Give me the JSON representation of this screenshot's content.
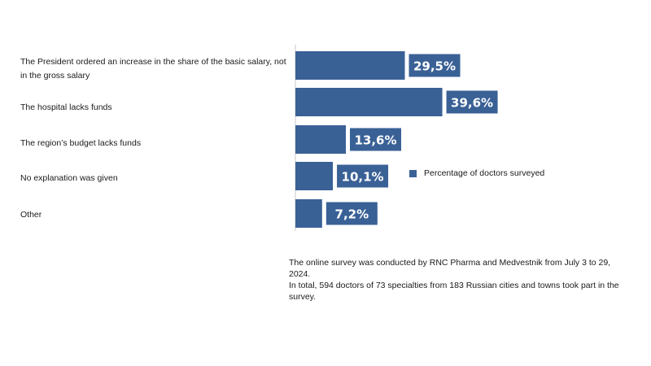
{
  "chart_data": {
    "type": "bar",
    "orientation": "horizontal",
    "categories": [
      "The President ordered an increase in the share of the basic salary, not in the gross salary",
      "The hospital lacks funds",
      "The region’s budget lacks funds",
      "No explanation was given",
      "Other"
    ],
    "series": [
      {
        "name": "Percentage of doctors surveyed",
        "values": [
          29.5,
          39.6,
          13.6,
          10.1,
          7.2
        ],
        "data_labels": [
          "29,5%",
          "39,6%",
          "13,6%",
          "10,1%",
          "7,2%"
        ]
      }
    ],
    "xlim": [
      0,
      100
    ],
    "grid": false,
    "legend_position": "right",
    "colors": {
      "bar": "#3A6196",
      "label_bg": "#3A6196",
      "label_text": "#ffffff",
      "axis": "#c8c8c8"
    }
  },
  "footnotes": [
    "The online survey was conducted by RNC Pharma and Medvestnik from July 3 to 29, 2024.",
    "In total, 594 doctors of 73 specialties from 183 Russian cities and towns took part in the survey."
  ]
}
